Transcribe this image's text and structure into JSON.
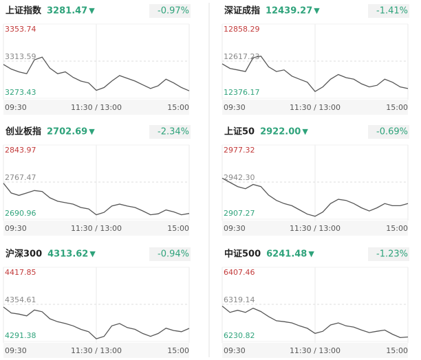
{
  "chart_data": [
    {
      "type": "line",
      "title": "上证指数",
      "price": "3281.47",
      "arrow": "▼",
      "change": "-0.97%",
      "color": "#555555",
      "x": [
        0,
        10,
        20,
        30,
        40,
        50,
        60,
        70,
        80,
        90,
        100,
        110,
        120,
        130,
        140,
        150,
        160,
        170,
        180,
        190,
        200,
        210,
        220,
        230,
        240
      ],
      "values": [
        3310,
        3305,
        3302,
        3300,
        3315,
        3318,
        3306,
        3300,
        3302,
        3296,
        3292,
        3290,
        3282,
        3285,
        3292,
        3298,
        3295,
        3292,
        3288,
        3284,
        3287,
        3294,
        3290,
        3285,
        3281.47
      ],
      "xlim": [
        0,
        240
      ],
      "xticks": [
        {
          "value": 0,
          "label": "09:30"
        },
        {
          "value": 120,
          "label": "11:30 / 13:00"
        },
        {
          "value": 240,
          "label": "15:00"
        }
      ],
      "ylim": [
        3273.43,
        3353.74
      ],
      "yticks": [
        3273.43,
        3313.59,
        3353.74
      ]
    },
    {
      "type": "line",
      "title": "深证成指",
      "price": "12439.27",
      "arrow": "▼",
      "change": "-1.41%",
      "color": "#555555",
      "x": [
        0,
        10,
        20,
        30,
        40,
        50,
        60,
        70,
        80,
        90,
        100,
        110,
        120,
        130,
        140,
        150,
        160,
        170,
        180,
        190,
        200,
        210,
        220,
        230,
        240
      ],
      "values": [
        12600,
        12570,
        12560,
        12550,
        12640,
        12650,
        12580,
        12550,
        12560,
        12520,
        12500,
        12480,
        12420,
        12450,
        12500,
        12530,
        12510,
        12500,
        12470,
        12450,
        12460,
        12500,
        12480,
        12450,
        12439.27
      ],
      "xlim": [
        0,
        240
      ],
      "xticks": [
        {
          "value": 0,
          "label": "09:30"
        },
        {
          "value": 120,
          "label": "11:30 / 13:00"
        },
        {
          "value": 240,
          "label": "15:00"
        }
      ],
      "ylim": [
        12376.17,
        12858.29
      ],
      "yticks": [
        12376.17,
        12617.23,
        12858.29
      ]
    },
    {
      "type": "line",
      "title": "创业板指",
      "price": "2702.69",
      "arrow": "▼",
      "change": "-2.34%",
      "color": "#555555",
      "x": [
        0,
        10,
        20,
        30,
        40,
        50,
        60,
        70,
        80,
        90,
        100,
        110,
        120,
        130,
        140,
        150,
        160,
        170,
        180,
        190,
        200,
        210,
        220,
        230,
        240
      ],
      "values": [
        2765,
        2745,
        2740,
        2745,
        2750,
        2748,
        2735,
        2728,
        2725,
        2722,
        2715,
        2712,
        2700,
        2705,
        2718,
        2722,
        2718,
        2715,
        2708,
        2700,
        2702,
        2710,
        2706,
        2700,
        2702.69
      ],
      "xlim": [
        0,
        240
      ],
      "xticks": [
        {
          "value": 0,
          "label": "09:30"
        },
        {
          "value": 120,
          "label": "11:30 / 13:00"
        },
        {
          "value": 240,
          "label": "15:00"
        }
      ],
      "ylim": [
        2690.96,
        2843.97
      ],
      "yticks": [
        2690.96,
        2767.47,
        2843.97
      ]
    },
    {
      "type": "line",
      "title": "上证50",
      "price": "2922.00",
      "arrow": "▼",
      "change": "-0.69%",
      "color": "#555555",
      "x": [
        0,
        10,
        20,
        30,
        40,
        50,
        60,
        70,
        80,
        90,
        100,
        110,
        120,
        130,
        140,
        150,
        160,
        170,
        180,
        190,
        200,
        210,
        220,
        230,
        240
      ],
      "values": [
        2946,
        2942,
        2938,
        2936,
        2940,
        2938,
        2930,
        2925,
        2922,
        2920,
        2916,
        2912,
        2910,
        2914,
        2922,
        2926,
        2925,
        2922,
        2918,
        2915,
        2918,
        2922,
        2920,
        2920,
        2922.0
      ],
      "xlim": [
        0,
        240
      ],
      "xticks": [
        {
          "value": 0,
          "label": "09:30"
        },
        {
          "value": 120,
          "label": "11:30 / 13:00"
        },
        {
          "value": 240,
          "label": "15:00"
        }
      ],
      "ylim": [
        2907.27,
        2977.32
      ],
      "yticks": [
        2907.27,
        {
          "value": 2942.3,
          "label": "2942.30"
        },
        2977.32
      ]
    },
    {
      "type": "line",
      "title": "沪深300",
      "price": "4313.62",
      "arrow": "▼",
      "change": "-0.94%",
      "color": "#555555",
      "x": [
        0,
        10,
        20,
        30,
        40,
        50,
        60,
        70,
        80,
        90,
        100,
        110,
        120,
        130,
        140,
        150,
        160,
        170,
        180,
        190,
        200,
        210,
        220,
        230,
        240
      ],
      "values": [
        4350,
        4340,
        4338,
        4335,
        4345,
        4342,
        4330,
        4325,
        4322,
        4318,
        4312,
        4308,
        4296,
        4300,
        4318,
        4322,
        4315,
        4312,
        4305,
        4300,
        4305,
        4314,
        4310,
        4308,
        4313.62
      ],
      "xlim": [
        0,
        240
      ],
      "xticks": [
        {
          "value": 0,
          "label": "09:30"
        },
        {
          "value": 120,
          "label": "11:30 / 13:00"
        },
        {
          "value": 240,
          "label": "15:00"
        }
      ],
      "ylim": [
        4291.38,
        4417.85
      ],
      "yticks": [
        4291.38,
        4354.61,
        4417.85
      ]
    },
    {
      "type": "line",
      "title": "中证500",
      "price": "6241.48",
      "arrow": "▼",
      "change": "-1.23%",
      "color": "#555555",
      "x": [
        0,
        10,
        20,
        30,
        40,
        50,
        60,
        70,
        80,
        90,
        100,
        110,
        120,
        130,
        140,
        150,
        160,
        170,
        180,
        190,
        200,
        210,
        220,
        230,
        240
      ],
      "values": [
        6315,
        6300,
        6305,
        6300,
        6310,
        6302,
        6290,
        6280,
        6278,
        6275,
        6268,
        6262,
        6250,
        6255,
        6270,
        6275,
        6268,
        6265,
        6258,
        6252,
        6255,
        6258,
        6248,
        6240,
        6241.48
      ],
      "xlim": [
        0,
        240
      ],
      "xticks": [
        {
          "value": 0,
          "label": "09:30"
        },
        {
          "value": 120,
          "label": "11:30 / 13:00"
        },
        {
          "value": 240,
          "label": "15:00"
        }
      ],
      "ylim": [
        6230.82,
        6407.46
      ],
      "yticks": [
        6230.82,
        6319.14,
        6407.46
      ]
    }
  ]
}
